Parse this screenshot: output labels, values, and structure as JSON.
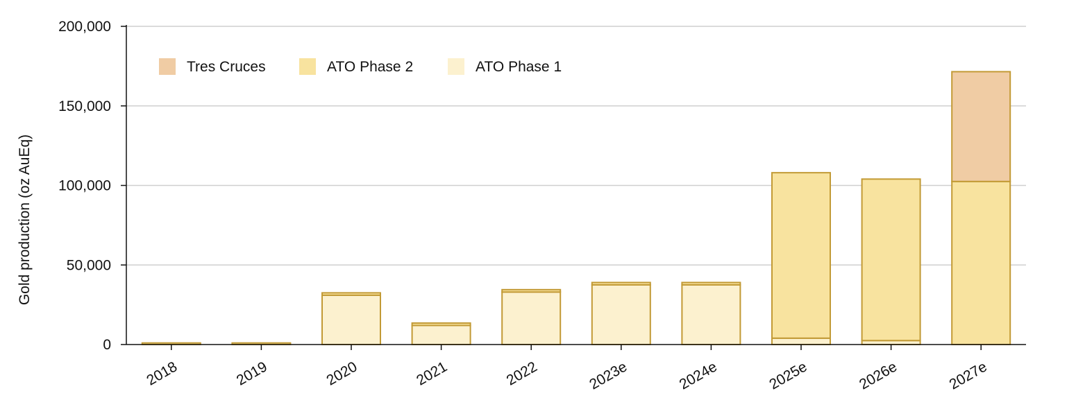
{
  "chart_data": {
    "type": "bar",
    "stacked": true,
    "title": "",
    "xlabel": "",
    "ylabel": "Gold production (oz AuEq)",
    "ylim": [
      0,
      200000
    ],
    "yticks": [
      0,
      50000,
      100000,
      150000,
      200000
    ],
    "ytick_labels": [
      "0",
      "50,000",
      "100,000",
      "150,000",
      "200,000"
    ],
    "grid": "horizontal",
    "legend_position": "top-left",
    "categories": [
      "2018",
      "2019",
      "2020",
      "2021",
      "2022",
      "2023e",
      "2024e",
      "2025e",
      "2026e",
      "2027e"
    ],
    "series": [
      {
        "name": "ATO Phase 1",
        "color": "#FCF1CF",
        "values": [
          0,
          0,
          31000,
          12000,
          33000,
          37500,
          37500,
          4000,
          2500,
          0
        ]
      },
      {
        "name": "ATO Phase 2",
        "color": "#F8E39F",
        "values": [
          1000,
          1000,
          1500,
          1500,
          1500,
          1500,
          1500,
          104000,
          101500,
          102500
        ]
      },
      {
        "name": "Tres Cruces",
        "color": "#F0CCA4",
        "values": [
          0,
          0,
          0,
          0,
          0,
          0,
          0,
          0,
          0,
          69000
        ]
      }
    ],
    "legend_order": [
      "Tres Cruces",
      "ATO Phase 2",
      "ATO Phase 1"
    ],
    "bar_edge_color": "#C29A35"
  }
}
